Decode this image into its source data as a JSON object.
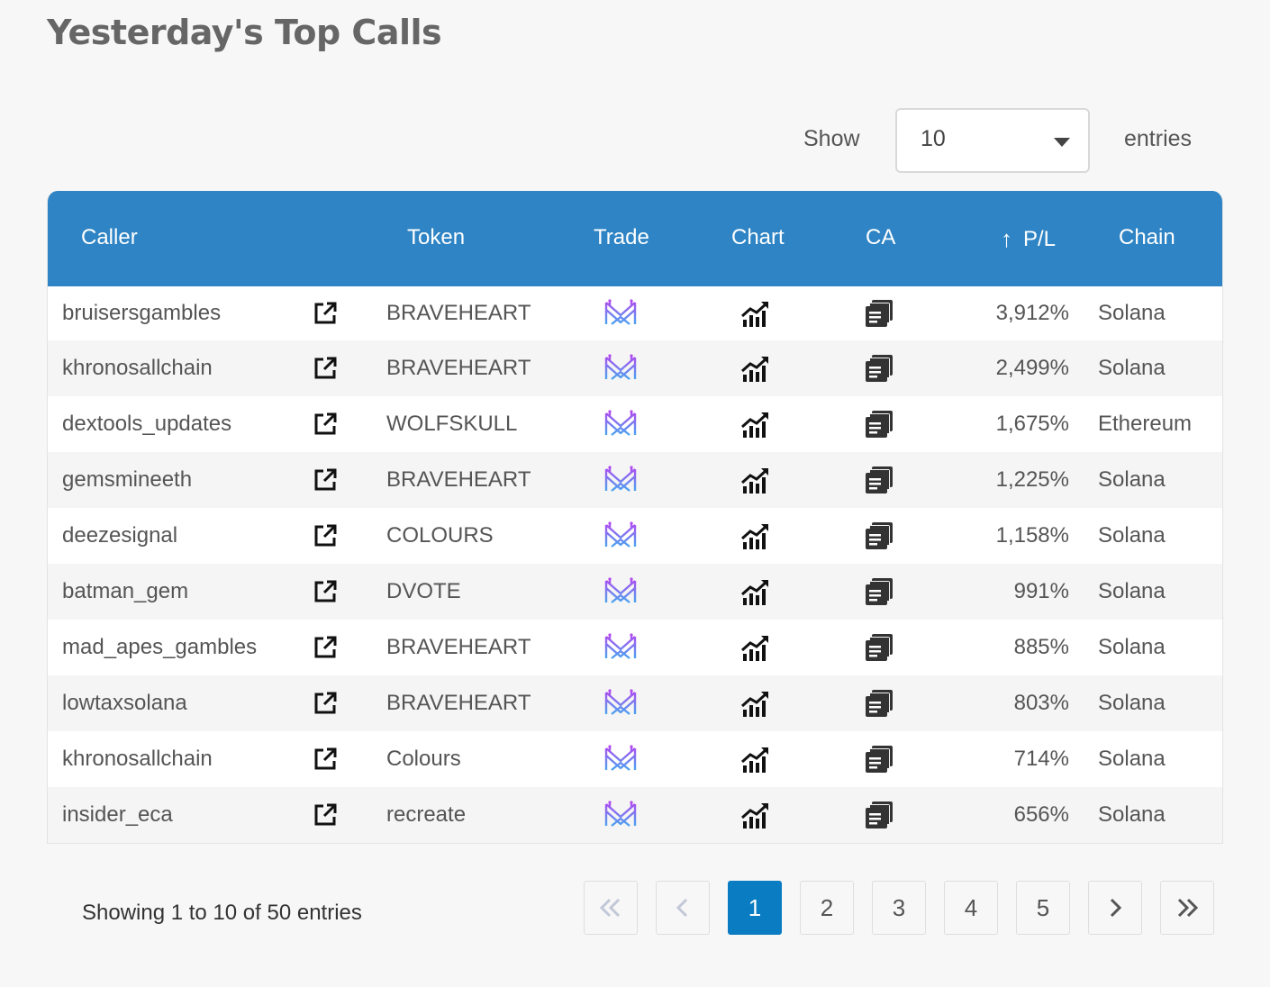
{
  "page": {
    "title": "Yesterday's Top Calls"
  },
  "length_control": {
    "show_label": "Show",
    "selected": "10",
    "entries_label": "entries"
  },
  "table": {
    "headers": {
      "caller": "Caller",
      "token": "Token",
      "trade": "Trade",
      "chart": "Chart",
      "ca": "CA",
      "pl": "P/L",
      "chain": "Chain"
    },
    "sort": {
      "column": "P/L",
      "direction": "descending",
      "icon": "arrow-up-icon"
    },
    "rows": [
      {
        "caller": "bruisersgambles",
        "token": "BRAVEHEART",
        "pl": "3,912%",
        "chain": "Solana"
      },
      {
        "caller": "khronosallchain",
        "token": "BRAVEHEART",
        "pl": "2,499%",
        "chain": "Solana"
      },
      {
        "caller": "dextools_updates",
        "token": "WOLFSKULL",
        "pl": "1,675%",
        "chain": "Ethereum"
      },
      {
        "caller": "gemsmineeth",
        "token": "BRAVEHEART",
        "pl": "1,225%",
        "chain": "Solana"
      },
      {
        "caller": "deezesignal",
        "token": "COLOURS",
        "pl": "1,158%",
        "chain": "Solana"
      },
      {
        "caller": "batman_gem",
        "token": "DVOTE",
        "pl": "991%",
        "chain": "Solana"
      },
      {
        "caller": "mad_apes_gambles",
        "token": "BRAVEHEART",
        "pl": "885%",
        "chain": "Solana"
      },
      {
        "caller": "lowtaxsolana",
        "token": "BRAVEHEART",
        "pl": "803%",
        "chain": "Solana"
      },
      {
        "caller": "khronosallchain",
        "token": "Colours",
        "pl": "714%",
        "chain": "Solana"
      },
      {
        "caller": "insider_eca",
        "token": "recreate",
        "pl": "656%",
        "chain": "Solana"
      }
    ],
    "row_icons": {
      "link": "external-link-icon",
      "trade": "trade-logo-icon",
      "chart": "chart-icon",
      "ca": "copy-icon"
    }
  },
  "footer": {
    "info": "Showing 1 to 10 of 50 entries",
    "pages": [
      "1",
      "2",
      "3",
      "4",
      "5"
    ],
    "current_page": "1"
  },
  "colors": {
    "header_bg": "#2e84c4",
    "active_page": "#0a7cc2",
    "trade_logo_top": "#b14cf0",
    "trade_logo_bottom": "#4aa3f0"
  }
}
